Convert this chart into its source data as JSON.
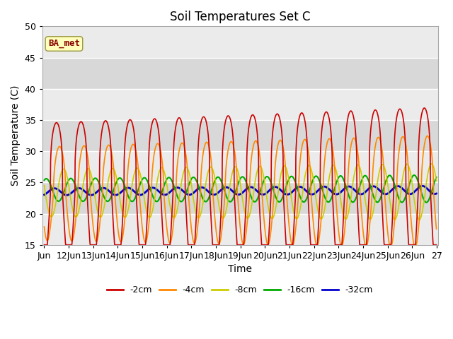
{
  "title": "Soil Temperatures Set C",
  "xlabel": "Time",
  "ylabel": "Soil Temperature (C)",
  "ylim": [
    15,
    50
  ],
  "yticks": [
    15,
    20,
    25,
    30,
    35,
    40,
    45,
    50
  ],
  "x_tick_labels": [
    "Jun",
    "12Jun",
    "13Jun",
    "14Jun",
    "15Jun",
    "16Jun",
    "17Jun",
    "18Jun",
    "19Jun",
    "20Jun",
    "21Jun",
    "22Jun",
    "23Jun",
    "24Jun",
    "25Jun",
    "26Jun",
    "27"
  ],
  "legend_labels": [
    "-2cm",
    "-4cm",
    "-8cm",
    "-16cm",
    "-32cm"
  ],
  "legend_colors": [
    "#cc0000",
    "#ff8800",
    "#cccc00",
    "#00aa00",
    "#0000cc"
  ],
  "line_widths": [
    1.2,
    1.2,
    1.2,
    1.5,
    2.0
  ],
  "annotation_text": "BA_met",
  "annotation_bgcolor": "#ffffbb",
  "annotation_edgecolor": "#999944",
  "annotation_textcolor": "#880000",
  "bg_color": "#d8d8d8",
  "n_days": 16,
  "pts_per_day": 96,
  "base_temps": [
    23.0,
    23.2,
    23.3,
    23.8,
    23.5
  ],
  "base_temps_end": [
    23.5,
    23.5,
    23.5,
    24.0,
    23.8
  ],
  "amplitudes_start": [
    11.5,
    7.5,
    3.8,
    1.8,
    0.55
  ],
  "amplitudes_end": [
    13.5,
    9.0,
    4.5,
    2.2,
    0.65
  ],
  "phase_lags": [
    0.0,
    3.0,
    7.0,
    14.0,
    22.0
  ],
  "sharpness": [
    3.5,
    2.0,
    1.2,
    1.0,
    1.0
  ]
}
